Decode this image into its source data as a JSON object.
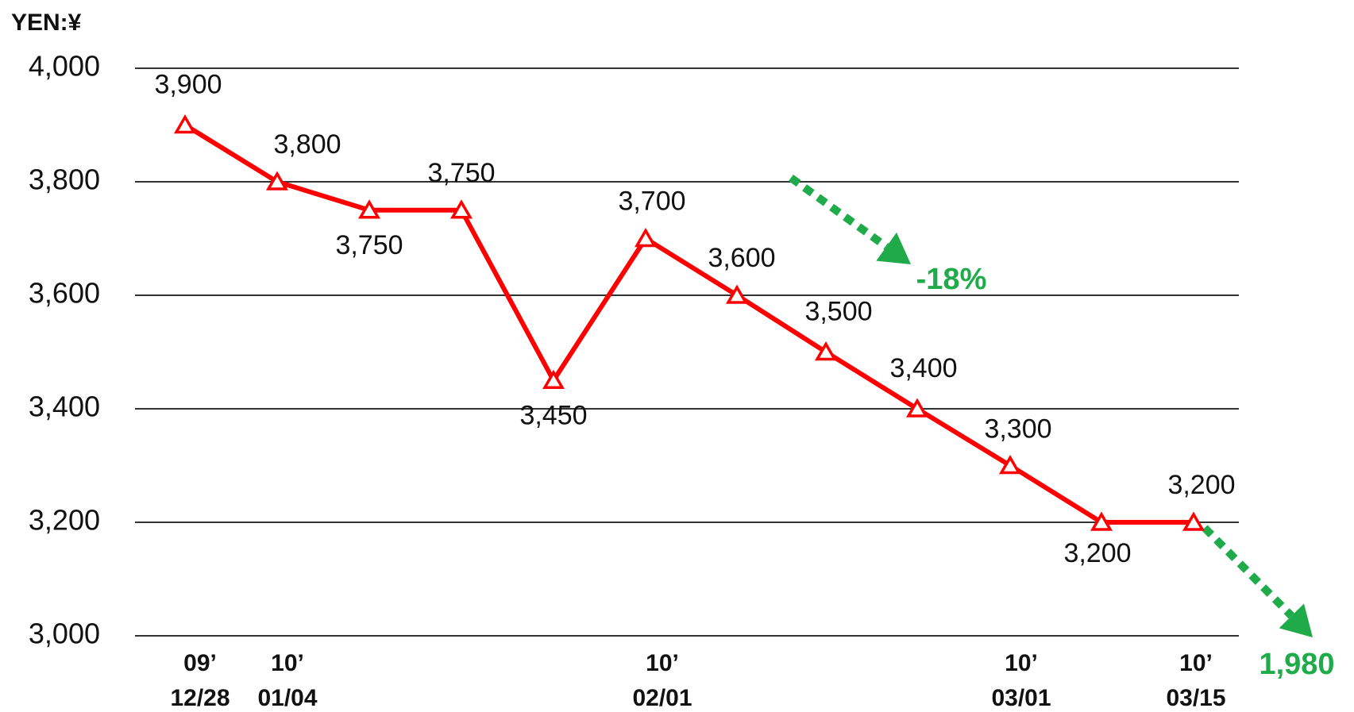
{
  "chart_data": {
    "type": "line",
    "ylabel": "YEN:¥",
    "ylim": [
      3000,
      4000
    ],
    "yticks": [
      "3,000",
      "3,200",
      "3,400",
      "3,600",
      "3,800",
      "4,000"
    ],
    "x_tick_labels": [
      {
        "year": "09’",
        "date": "12/28"
      },
      {
        "year": "10’",
        "date": "01/04"
      },
      {
        "year": "10’",
        "date": "02/01"
      },
      {
        "year": "10’",
        "date": "03/01"
      },
      {
        "year": "10’",
        "date": "03/15"
      }
    ],
    "series": [
      {
        "values": [
          3900,
          3800,
          3750,
          3750,
          3450,
          3700,
          3600,
          3500,
          3400,
          3300,
          3200,
          3200
        ],
        "labels": [
          "3,900",
          "3,800",
          "3,750",
          "3,750",
          "3,450",
          "3,700",
          "3,600",
          "3,500",
          "3,400",
          "3,300",
          "3,200",
          "3,200"
        ]
      }
    ],
    "annotations": [
      {
        "text": "-18%"
      },
      {
        "text": "1,980"
      }
    ],
    "grid": true
  },
  "colors": {
    "line": "#ff0000",
    "grid": "#333333",
    "arrow": "#1fab4a"
  }
}
